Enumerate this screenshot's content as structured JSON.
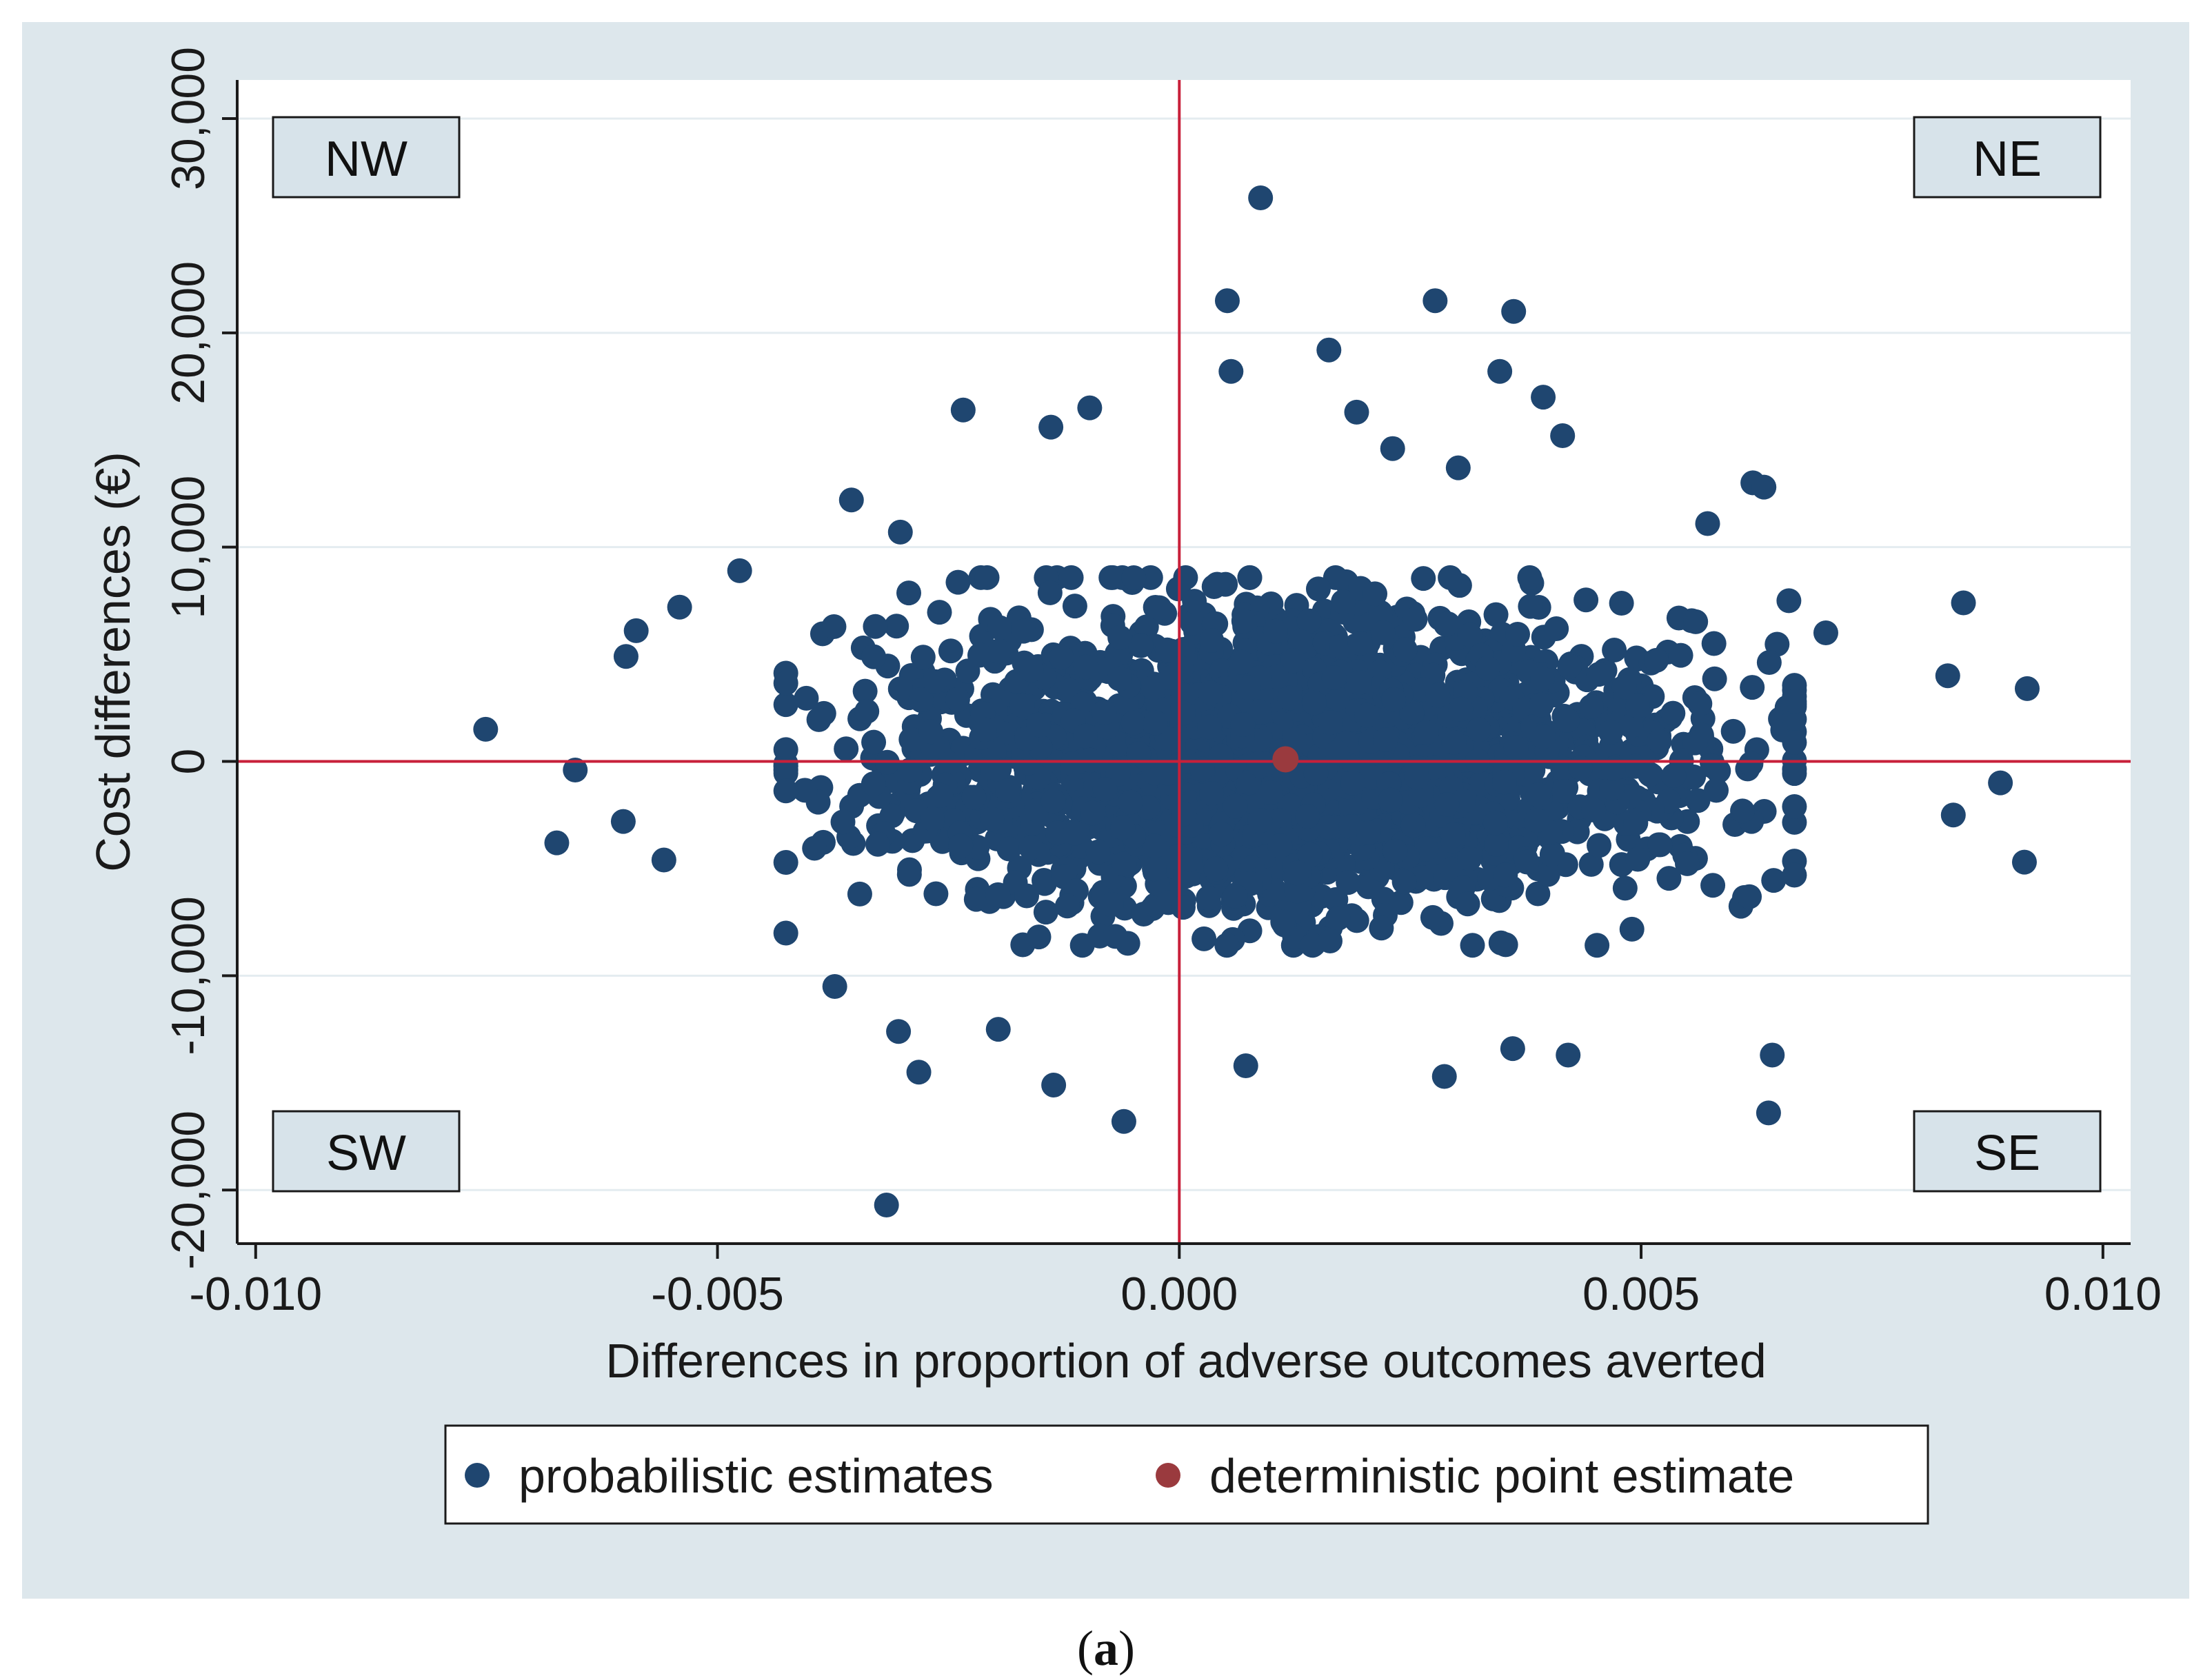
{
  "colors": {
    "background": "#dde7ec",
    "plot_bg": "#ffffff",
    "grid": "#e4ecf0",
    "probabilistic": "#1f4670",
    "deterministic": "#9a3a3e",
    "ref_line": "#c8203a",
    "quad_box_fill": "#d7e3ea"
  },
  "caption": {
    "open": "(",
    "letter": "a",
    "close": ")"
  },
  "chart_data": {
    "type": "scatter",
    "title": "",
    "xlabel": "Differences in proportion of adverse outcomes averted",
    "ylabel": "Cost differences (€)",
    "xlim": [
      -0.0102,
      0.0103
    ],
    "ylim": [
      -22500,
      31800
    ],
    "x_ticks": [
      {
        "value": -0.01,
        "label": "-0.010"
      },
      {
        "value": -0.005,
        "label": "-0.005"
      },
      {
        "value": 0.0,
        "label": "0.000"
      },
      {
        "value": 0.005,
        "label": "0.005"
      },
      {
        "value": 0.01,
        "label": "0.010"
      }
    ],
    "y_ticks": [
      {
        "value": -20000,
        "label": "-20,000"
      },
      {
        "value": -10000,
        "label": "-10,000"
      },
      {
        "value": 0,
        "label": "0"
      },
      {
        "value": 10000,
        "label": "10,000"
      },
      {
        "value": 20000,
        "label": "20,000"
      },
      {
        "value": 30000,
        "label": "30,000"
      }
    ],
    "grid": true,
    "reference_lines": {
      "x": 0,
      "y": 0
    },
    "quadrants": [
      {
        "label": "NW",
        "position": "top-left"
      },
      {
        "label": "NE",
        "position": "top-right"
      },
      {
        "label": "SW",
        "position": "bottom-left"
      },
      {
        "label": "SE",
        "position": "bottom-right"
      }
    ],
    "legend": {
      "position": "bottom",
      "entries": [
        {
          "label": "probabilistic estimates",
          "series": "probabilistic"
        },
        {
          "label": "deterministic point estimate",
          "series": "deterministic"
        }
      ]
    },
    "series": [
      {
        "name": "probabilistic estimates",
        "distribution": {
          "mean_x": 0.0012,
          "sd_x": 0.0021,
          "mean_y": 0,
          "sd_y": 3300,
          "n": 2600
        },
        "outliers": [
          [
            0.00088,
            26300
          ],
          [
            0.00052,
            21500
          ],
          [
            0.00277,
            21500
          ],
          [
            0.00362,
            21000
          ],
          [
            0.00162,
            19200
          ],
          [
            0.00056,
            18200
          ],
          [
            0.00347,
            18200
          ],
          [
            0.00394,
            17000
          ],
          [
            -0.00234,
            16400
          ],
          [
            -0.00097,
            16500
          ],
          [
            -0.00139,
            15600
          ],
          [
            0.00192,
            16300
          ],
          [
            0.00415,
            15200
          ],
          [
            0.00231,
            14600
          ],
          [
            0.00302,
            13700
          ],
          [
            -0.00302,
            10700
          ],
          [
            -0.00355,
            12200
          ],
          [
            -0.00476,
            8900
          ],
          [
            -0.00541,
            7200
          ],
          [
            -0.00588,
            6100
          ],
          [
            -0.00599,
            4900
          ],
          [
            -0.00751,
            1500
          ],
          [
            -0.00654,
            -400
          ],
          [
            -0.00674,
            -3800
          ],
          [
            -0.00602,
            -2800
          ],
          [
            -0.00558,
            -4600
          ],
          [
            -0.00373,
            -10500
          ],
          [
            -0.00304,
            -12600
          ],
          [
            -0.00282,
            -14500
          ],
          [
            -0.00196,
            -12500
          ],
          [
            -0.00136,
            -15100
          ],
          [
            -0.0006,
            -16800
          ],
          [
            -0.00317,
            -20700
          ],
          [
            0.00072,
            -14200
          ],
          [
            0.00287,
            -14700
          ],
          [
            0.00421,
            -13700
          ],
          [
            0.00361,
            -13400
          ],
          [
            0.00638,
            -16400
          ],
          [
            0.00642,
            -13700
          ],
          [
            0.00849,
            7400
          ],
          [
            0.00832,
            4000
          ],
          [
            0.00918,
            3400
          ],
          [
            0.00889,
            -1000
          ],
          [
            0.00915,
            -4700
          ],
          [
            0.00838,
            -2500
          ],
          [
            0.00621,
            13000
          ],
          [
            0.00633,
            12800
          ],
          [
            0.00572,
            11100
          ],
          [
            0.0066,
            7500
          ],
          [
            0.007,
            6000
          ]
        ]
      },
      {
        "name": "deterministic point estimate",
        "x": [
          0.00115
        ],
        "y": [
          100
        ]
      }
    ]
  }
}
